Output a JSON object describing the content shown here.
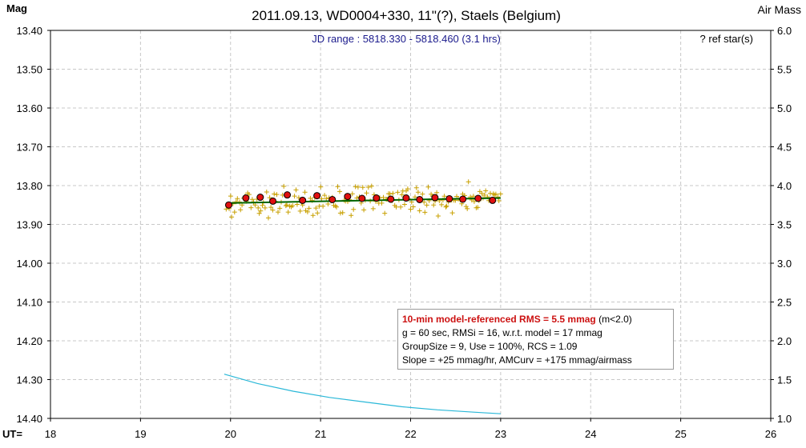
{
  "chart_data": {
    "type": "scatter",
    "title": "2011.09.13, WD0004+330, 11\"(?), Staels (Belgium)",
    "subtitle": "JD range : 5818.330 - 5818.460 (3.1 hrs)",
    "ref_star_note": "? ref star(s)",
    "ylabel_left": "Mag",
    "ylabel_right": "Air Mass",
    "xlabel": "UT=",
    "xlim": [
      18,
      26
    ],
    "ylim_left": [
      13.4,
      14.4
    ],
    "ylim_left_inverted": true,
    "ylim_right": [
      1.0,
      6.0
    ],
    "x_ticks": [
      "18",
      "19",
      "20",
      "21",
      "22",
      "23",
      "24",
      "25",
      "26"
    ],
    "y_ticks_left": [
      "13.40",
      "13.50",
      "13.60",
      "13.70",
      "13.80",
      "13.90",
      "14.00",
      "14.10",
      "14.20",
      "14.30",
      "14.40"
    ],
    "y_ticks_right": [
      "6.0",
      "5.5",
      "5.0",
      "4.5",
      "4.0",
      "3.5",
      "3.0",
      "2.5",
      "2.0",
      "1.5",
      "1.0"
    ],
    "grid": true,
    "colors": {
      "raw_points": "#c8a000",
      "binned_points": "#e01010",
      "model_line": "#006400",
      "airmass_line": "#2ab8d8"
    },
    "series": [
      {
        "kind": "binned",
        "x": [
          19.98,
          20.17,
          20.33,
          20.47,
          20.63,
          20.8,
          20.96,
          21.13,
          21.3,
          21.46,
          21.62,
          21.78,
          21.95,
          22.1,
          22.27,
          22.43,
          22.58,
          22.75,
          22.91
        ],
        "y": [
          13.85,
          13.832,
          13.83,
          13.84,
          13.824,
          13.838,
          13.826,
          13.836,
          13.828,
          13.833,
          13.832,
          13.835,
          13.832,
          13.836,
          13.831,
          13.834,
          13.835,
          13.833,
          13.838
        ]
      },
      {
        "kind": "model",
        "x": [
          19.95,
          23.0
        ],
        "y": [
          13.845,
          13.832
        ]
      },
      {
        "kind": "airmass",
        "x": [
          19.93,
          20.3,
          20.7,
          21.1,
          21.5,
          21.9,
          22.3,
          22.7,
          23.0
        ],
        "y": [
          1.57,
          1.45,
          1.35,
          1.27,
          1.21,
          1.15,
          1.11,
          1.08,
          1.06
        ]
      }
    ],
    "raw_point_count": 190,
    "raw_scatter_mmag": 18
  },
  "info": {
    "line1_rms": "10-min model-referenced RMS = 5.5 mmag",
    "line1_extra": " (m<2.0)",
    "line2": "g = 60 sec, RMSi = 16, w.r.t. model = 17 mmag",
    "line3": "GroupSize = 9, Use = 100%, RCS = 1.09",
    "line4": "Slope = +25 mmag/hr, AMCurv = +175 mmag/airmass"
  }
}
